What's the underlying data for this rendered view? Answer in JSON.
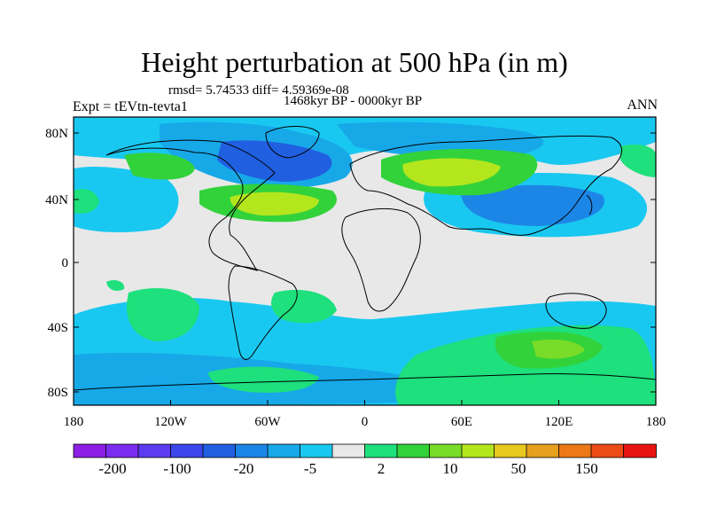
{
  "title": "Height perturbation at 500 hPa (in m)",
  "stats": "rmsd= 5.74533 diff= 4.59369e-08",
  "period": "1468kyr BP - 0000kyr BP",
  "experiment": "Expt = tEVtn-tevta1",
  "season": "ANN",
  "lat_labels": [
    "80N",
    "40N",
    "0",
    "40S",
    "80S"
  ],
  "lon_labels": [
    "180",
    "120W",
    "60W",
    "0",
    "60E",
    "120E",
    "180"
  ],
  "colorbar": {
    "colors": [
      "#8c1ee6",
      "#7a2cf0",
      "#5c3cf0",
      "#3c46ea",
      "#2060e0",
      "#1c86e6",
      "#17a8e8",
      "#19c8f0",
      "#e8e8e8",
      "#1ee07c",
      "#32d23a",
      "#78dc28",
      "#b4e61e",
      "#e6c81e",
      "#e6a01e",
      "#ec7818",
      "#ec4a16",
      "#e81410"
    ],
    "labels": [
      "-200",
      "-100",
      "-20",
      "-5",
      "2",
      "10",
      "50",
      "150"
    ]
  },
  "palette": {
    "neutral": "#e8e8e8",
    "light_blue": "#19c8f0",
    "mid_blue": "#17a8e8",
    "blue": "#1c86e6",
    "dark_blue": "#2060e0",
    "green": "#1ee07c",
    "mid_green": "#32d23a",
    "yellow_green": "#b4e61e"
  }
}
